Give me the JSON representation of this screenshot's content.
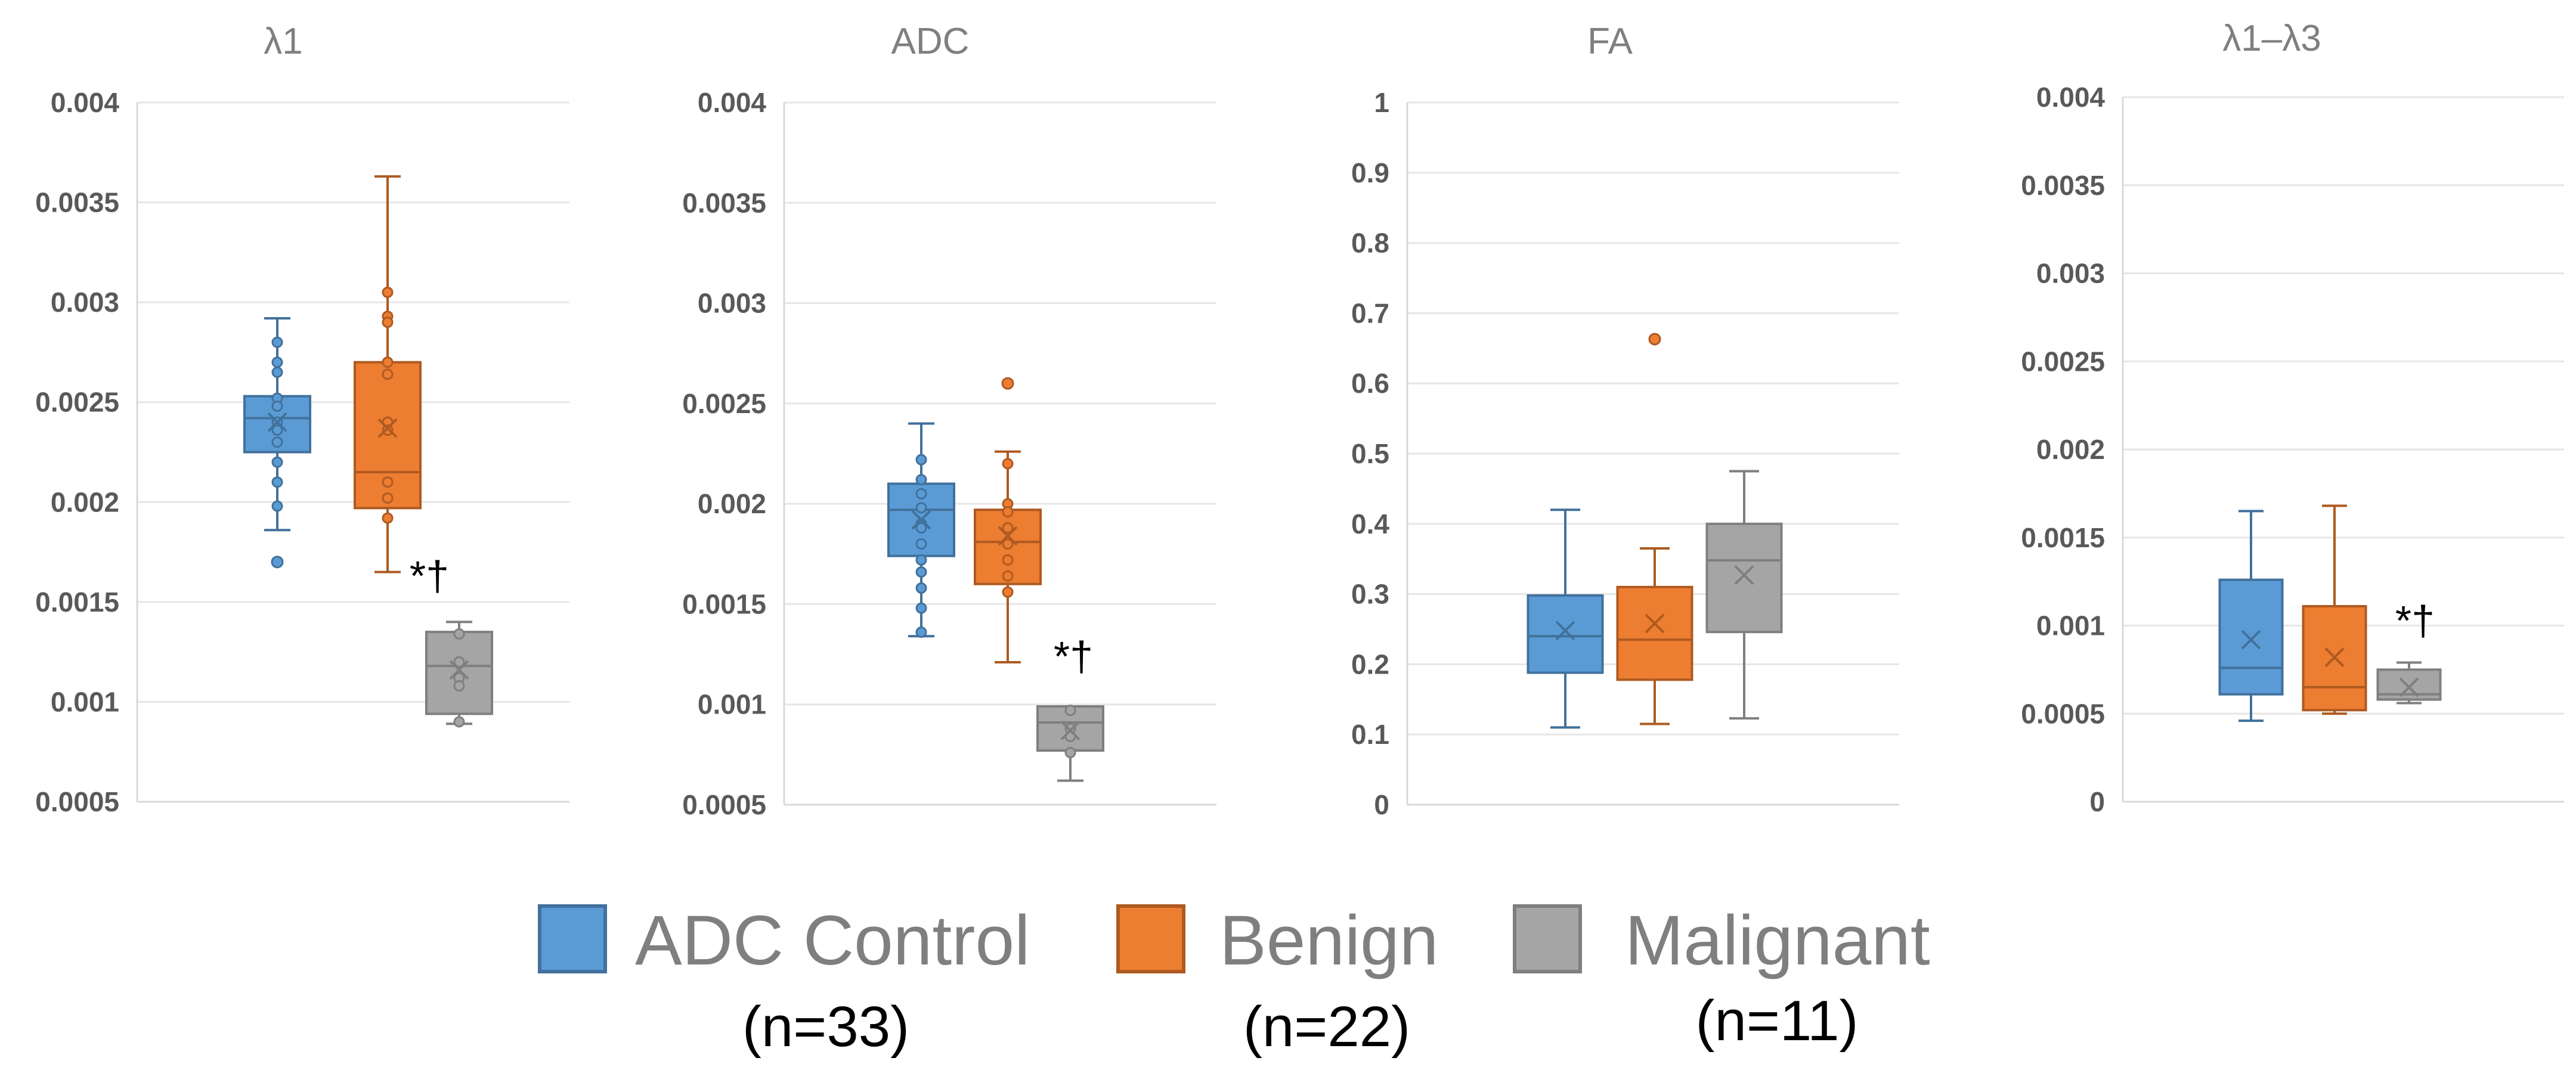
{
  "legend": {
    "items": [
      {
        "label": "ADC Control",
        "n": "(n=33)",
        "color": "#5b9bd5",
        "edge": "#41719c"
      },
      {
        "label": "Benign",
        "n": "(n=22)",
        "color": "#ed7d31",
        "edge": "#ae5a21"
      },
      {
        "label": "Malignant",
        "n": "(n=11)",
        "color": "#a5a5a5",
        "edge": "#7f7f7f"
      }
    ]
  },
  "chart_data": [
    {
      "type": "box",
      "title": "λ1",
      "ylim": [
        0.0005,
        0.004
      ],
      "yticks": [
        "0.0005",
        "0.001",
        "0.0015",
        "0.002",
        "0.0025",
        "0.003",
        "0.0035",
        "0.004"
      ],
      "annotation": "*†",
      "series": [
        {
          "name": "ADC Control",
          "min": 0.00186,
          "q1": 0.00225,
          "median": 0.00242,
          "q3": 0.00253,
          "max": 0.00292,
          "mean": 0.0024,
          "points": [
            0.0028,
            0.0027,
            0.00265,
            0.00252,
            0.00248,
            0.0024,
            0.00236,
            0.0023,
            0.0022,
            0.0021,
            0.00198
          ],
          "outliers": [
            0.0017
          ]
        },
        {
          "name": "Benign",
          "min": 0.00165,
          "q1": 0.00197,
          "median": 0.00215,
          "q3": 0.0027,
          "max": 0.00363,
          "mean": 0.00237,
          "points": [
            0.00305,
            0.00293,
            0.0029,
            0.0027,
            0.00264,
            0.0024,
            0.00236,
            0.0021,
            0.00202,
            0.00192
          ],
          "outliers": []
        },
        {
          "name": "Malignant",
          "min": 0.00089,
          "q1": 0.00094,
          "median": 0.00118,
          "q3": 0.00135,
          "max": 0.0014,
          "mean": 0.00116,
          "points": [
            0.00134,
            0.0012,
            0.00112,
            0.00108,
            0.0009
          ],
          "outliers": []
        }
      ]
    },
    {
      "type": "box",
      "title": "ADC",
      "ylim": [
        0.0005,
        0.004
      ],
      "yticks": [
        "0.0005",
        "0.001",
        "0.0015",
        "0.002",
        "0.0025",
        "0.003",
        "0.0035",
        "0.004"
      ],
      "annotation": "*†",
      "series": [
        {
          "name": "ADC Control",
          "min": 0.00134,
          "q1": 0.00174,
          "median": 0.00197,
          "q3": 0.0021,
          "max": 0.0024,
          "mean": 0.00192,
          "points": [
            0.00222,
            0.00212,
            0.00205,
            0.00198,
            0.0019,
            0.00188,
            0.0018,
            0.00172,
            0.00166,
            0.00158,
            0.00148,
            0.00136
          ],
          "outliers": []
        },
        {
          "name": "Benign",
          "min": 0.00121,
          "q1": 0.0016,
          "median": 0.00181,
          "q3": 0.00197,
          "max": 0.00226,
          "mean": 0.00184,
          "points": [
            0.0022,
            0.002,
            0.00196,
            0.00188,
            0.0018,
            0.00172,
            0.00164,
            0.00156
          ],
          "outliers": [
            0.0026
          ]
        },
        {
          "name": "Malignant",
          "min": 0.00062,
          "q1": 0.00077,
          "median": 0.00091,
          "q3": 0.00099,
          "max": 0.00099,
          "mean": 0.00087,
          "points": [
            0.00097,
            0.00088,
            0.00084,
            0.00076
          ],
          "outliers": []
        }
      ]
    },
    {
      "type": "box",
      "title": "FA",
      "ylim": [
        0,
        1
      ],
      "yticks": [
        "0",
        "0.1",
        "0.2",
        "0.3",
        "0.4",
        "0.5",
        "0.6",
        "0.7",
        "0.8",
        "0.9",
        "1"
      ],
      "annotation": "",
      "series": [
        {
          "name": "ADC Control",
          "min": 0.11,
          "q1": 0.188,
          "median": 0.24,
          "q3": 0.298,
          "max": 0.42,
          "mean": 0.248,
          "points": [],
          "outliers": []
        },
        {
          "name": "Benign",
          "min": 0.115,
          "q1": 0.178,
          "median": 0.235,
          "q3": 0.31,
          "max": 0.365,
          "mean": 0.258,
          "points": [],
          "outliers": [
            0.663
          ]
        },
        {
          "name": "Malignant",
          "min": 0.123,
          "q1": 0.246,
          "median": 0.348,
          "q3": 0.4,
          "max": 0.475,
          "mean": 0.327,
          "points": [],
          "outliers": []
        }
      ]
    },
    {
      "type": "box",
      "title": "λ1–λ3",
      "ylim": [
        0,
        0.004
      ],
      "yticks": [
        "0",
        "0.0005",
        "0.001",
        "0.0015",
        "0.002",
        "0.0025",
        "0.003",
        "0.0035",
        "0.004"
      ],
      "annotation": "*†",
      "series": [
        {
          "name": "ADC Control",
          "min": 0.00046,
          "q1": 0.00061,
          "median": 0.00076,
          "q3": 0.00126,
          "max": 0.00165,
          "mean": 0.00092,
          "points": [],
          "outliers": []
        },
        {
          "name": "Benign",
          "min": 0.0005,
          "q1": 0.00052,
          "median": 0.00065,
          "q3": 0.00111,
          "max": 0.00168,
          "mean": 0.00082,
          "points": [],
          "outliers": []
        },
        {
          "name": "Malignant",
          "min": 0.00056,
          "q1": 0.00058,
          "median": 0.00061,
          "q3": 0.00075,
          "max": 0.00079,
          "mean": 0.00065,
          "points": [],
          "outliers": []
        }
      ]
    }
  ]
}
